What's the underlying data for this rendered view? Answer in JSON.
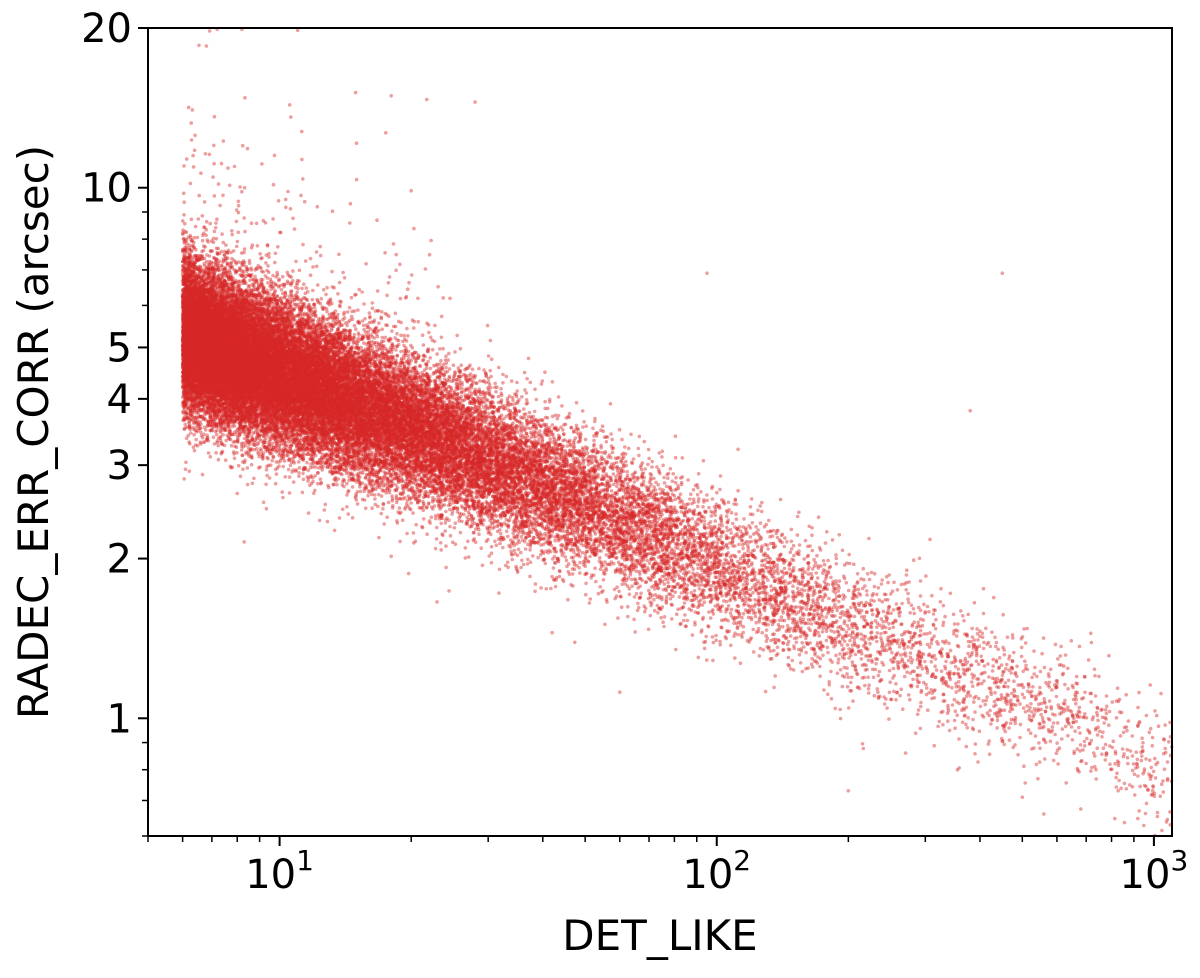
{
  "chart_data": {
    "type": "scatter",
    "xlabel": "DET_LIKE",
    "ylabel": "RADEC_ERR_CORR (arcsec)",
    "x_scale": "log",
    "y_scale": "log",
    "xlim": [
      5,
      1100
    ],
    "ylim": [
      0.6,
      20
    ],
    "grid": false,
    "legend": "none",
    "marker_color": "#d62728",
    "marker_alpha": 0.45,
    "x_ticks": [
      {
        "value": 10,
        "label": "10",
        "exp": "1"
      },
      {
        "value": 100,
        "label": "10",
        "exp": "2"
      },
      {
        "value": 1000,
        "label": "10",
        "exp": "3"
      }
    ],
    "y_ticks": [
      {
        "value": 1,
        "label": "1"
      },
      {
        "value": 2,
        "label": "2"
      },
      {
        "value": 3,
        "label": "3"
      },
      {
        "value": 4,
        "label": "4"
      },
      {
        "value": 5,
        "label": "5"
      },
      {
        "value": 10,
        "label": "10"
      },
      {
        "value": 20,
        "label": "20"
      }
    ],
    "series": [
      {
        "trend": {
          "x": [
            6,
            8,
            10,
            15,
            20,
            30,
            50,
            70,
            100,
            150,
            200,
            300,
            500,
            700,
            1000
          ],
          "y": [
            5.3,
            4.8,
            4.5,
            3.9,
            3.55,
            3.05,
            2.55,
            2.25,
            1.95,
            1.65,
            1.5,
            1.3,
            1.1,
            0.98,
            0.8
          ]
        },
        "density_points": 40000,
        "outliers": [
          {
            "x": 6.8,
            "y": 18.5
          },
          {
            "x": 7.2,
            "y": 20
          },
          {
            "x": 8.2,
            "y": 20
          },
          {
            "x": 11,
            "y": 19.8
          },
          {
            "x": 18,
            "y": 14.9
          },
          {
            "x": 28,
            "y": 14.5
          },
          {
            "x": 95,
            "y": 6.9
          },
          {
            "x": 450,
            "y": 6.9
          },
          {
            "x": 8.3,
            "y": 2.15
          },
          {
            "x": 18,
            "y": 2.02
          },
          {
            "x": 42,
            "y": 1.45
          },
          {
            "x": 60,
            "y": 1.12
          },
          {
            "x": 200,
            "y": 0.73
          },
          {
            "x": 560,
            "y": 0.66
          },
          {
            "x": 500,
            "y": 0.71
          },
          {
            "x": 380,
            "y": 3.8
          },
          {
            "x": 35,
            "y": 1.9
          }
        ]
      }
    ]
  }
}
